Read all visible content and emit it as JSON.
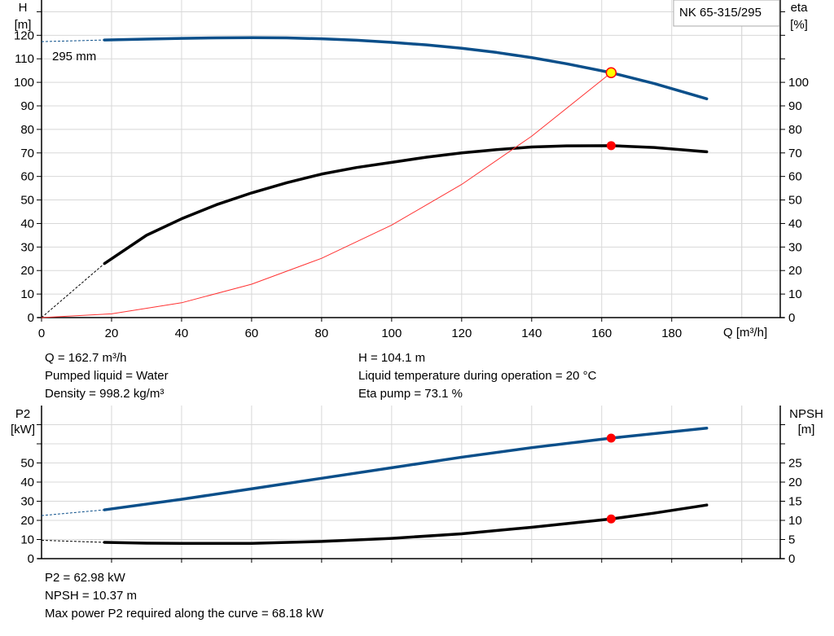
{
  "chart_data": [
    {
      "type": "line",
      "title": "NK 65-315/295",
      "xlabel": "Q [m³/h]",
      "ylabel_left": [
        "H",
        "[m]"
      ],
      "ylabel_right": [
        "eta",
        "[%]"
      ],
      "xlim": [
        0,
        211
      ],
      "ylim_left": [
        0,
        135
      ],
      "ylim_right": [
        0,
        135
      ],
      "x_ticks": [
        0,
        20,
        40,
        60,
        80,
        100,
        120,
        140,
        160,
        180
      ],
      "y_ticks_left": [
        0,
        10,
        20,
        30,
        40,
        50,
        60,
        70,
        80,
        90,
        100,
        110,
        120
      ],
      "y_ticks_right": [
        0,
        10,
        20,
        30,
        40,
        50,
        60,
        70,
        80,
        90,
        100
      ],
      "grid": true,
      "curve_label": "295 mm",
      "series": [
        {
          "key": "H",
          "axis": "left",
          "color": "#0b4f8a",
          "dashed_start": [
            [
              0,
              117.3
            ],
            [
              18,
              118
            ]
          ],
          "x": [
            18,
            30,
            40,
            50,
            60,
            70,
            80,
            90,
            100,
            110,
            120,
            130,
            140,
            150,
            162.7,
            175,
            190
          ],
          "y": [
            118,
            118.4,
            118.7,
            118.9,
            119,
            118.9,
            118.5,
            117.9,
            117,
            115.9,
            114.5,
            112.7,
            110.5,
            107.9,
            104.1,
            99.5,
            93
          ]
        },
        {
          "key": "eta",
          "axis": "right",
          "color": "#000000",
          "dashed_start": [
            [
              0,
              0
            ],
            [
              18,
              23
            ]
          ],
          "x": [
            18,
            30,
            40,
            50,
            60,
            70,
            80,
            90,
            100,
            110,
            120,
            130,
            140,
            150,
            162.7,
            175,
            190
          ],
          "y": [
            23,
            35,
            42,
            48,
            53,
            57.3,
            61,
            63.8,
            66,
            68.2,
            70,
            71.4,
            72.5,
            73,
            73.1,
            72.3,
            70.5
          ]
        },
        {
          "key": "system",
          "axis": "left",
          "color": "#ff3333",
          "x": [
            0,
            20,
            40,
            60,
            80,
            100,
            120,
            140,
            162.7
          ],
          "y": [
            0,
            1.6,
            6.3,
            14.2,
            25.2,
            39.3,
            56.6,
            77.1,
            104.1
          ]
        }
      ],
      "operating_point": {
        "x": 162.7,
        "H": 104.1,
        "eta": 73.1
      }
    },
    {
      "type": "line",
      "ylabel_left": [
        "P2",
        "[kW]"
      ],
      "ylabel_right": [
        "NPSH",
        "[m]"
      ],
      "xlim": [
        0,
        211
      ],
      "ylim_left": [
        0,
        80
      ],
      "ylim_right": [
        0,
        40
      ],
      "y_ticks_left": [
        0,
        10,
        20,
        30,
        40,
        50
      ],
      "y_ticks_right": [
        0,
        5,
        10,
        15,
        20,
        25
      ],
      "grid": true,
      "series": [
        {
          "key": "P2",
          "axis": "left",
          "color": "#0b4f8a",
          "dashed_start": [
            [
              0,
              22.5
            ],
            [
              18,
              25.5
            ]
          ],
          "x": [
            18,
            40,
            60,
            80,
            100,
            120,
            140,
            162.7,
            190
          ],
          "y": [
            25.5,
            31,
            36.5,
            42,
            47.5,
            53,
            58,
            62.98,
            68.18
          ]
        },
        {
          "key": "NPSH",
          "axis": "right",
          "color": "#000000",
          "dashed_start": [
            [
              0,
              4.8
            ],
            [
              18,
              4.25
            ]
          ],
          "x": [
            18,
            30,
            40,
            60,
            80,
            100,
            120,
            140,
            162.7,
            175,
            190
          ],
          "y": [
            4.25,
            4.05,
            4.0,
            4.0,
            4.5,
            5.3,
            6.5,
            8.2,
            10.37,
            11.9,
            14.0
          ]
        }
      ],
      "operating_point": {
        "x": 162.7,
        "P2": 62.98,
        "NPSH": 10.37
      }
    }
  ],
  "info_top": {
    "q": "Q = 162.7 m³/h",
    "liquid": "Pumped liquid = Water",
    "density": "Density = 998.2 kg/m³",
    "h": "H = 104.1 m",
    "temp": "Liquid temperature during operation = 20 °C",
    "eta": "Eta pump = 73.1 %"
  },
  "info_bottom": {
    "p2": "P2 = 62.98 kW",
    "npsh": "NPSH = 10.37 m",
    "maxp2": "Max power P2 required along the curve = 68.18 kW"
  }
}
